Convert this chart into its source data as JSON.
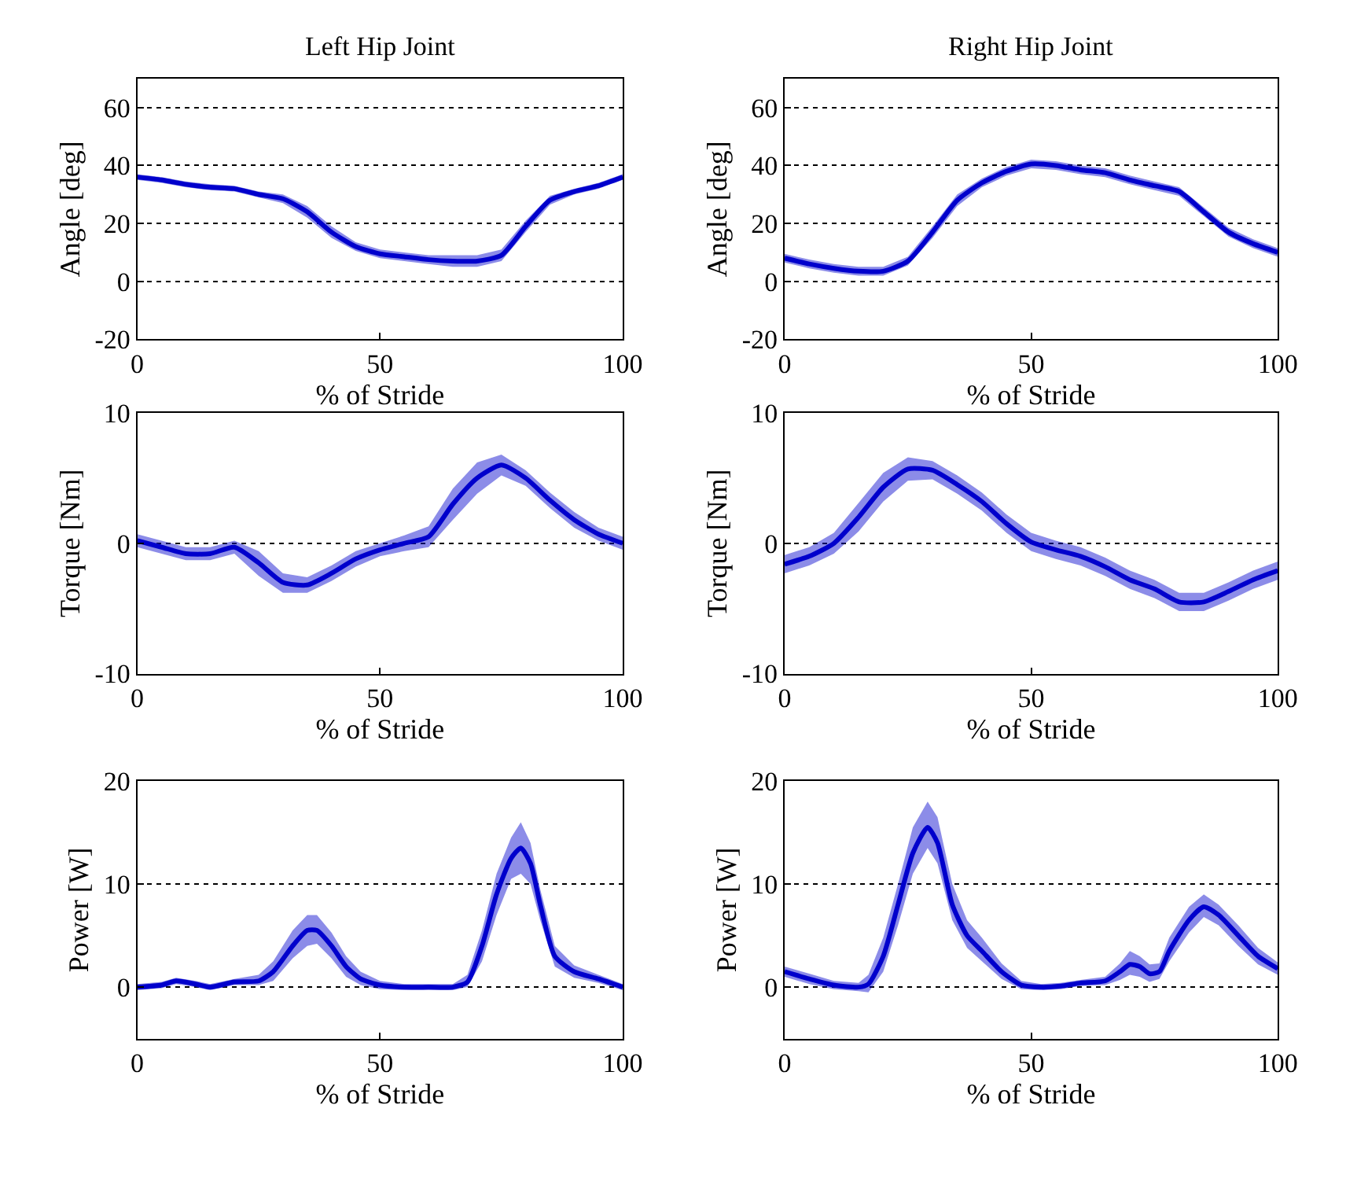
{
  "chart_data": [
    {
      "type": "line",
      "title": "Left Hip Joint",
      "xlabel": "% of Stride",
      "ylabel": "Angle [deg]",
      "xlim": [
        0,
        100
      ],
      "xticks": [
        0,
        50,
        100
      ],
      "ylim": [
        -20,
        70
      ],
      "yticks": [
        -20,
        0,
        20,
        40,
        60
      ],
      "grid": "y",
      "series": [
        {
          "color": "#0000cc",
          "x": [
            0,
            5,
            10,
            15,
            20,
            25,
            30,
            35,
            40,
            45,
            50,
            55,
            60,
            65,
            70,
            75,
            80,
            85,
            90,
            95,
            100
          ],
          "values": [
            36,
            35,
            33.5,
            32.5,
            32,
            30,
            28.5,
            24,
            17,
            12,
            9.5,
            8.5,
            7.5,
            7,
            7,
            9,
            19,
            28,
            31,
            33,
            36
          ],
          "lower": [
            35,
            34,
            32.5,
            31.5,
            31,
            29,
            27,
            22,
            15,
            10.5,
            8,
            7,
            6,
            5,
            5,
            7,
            17,
            26.5,
            30,
            32,
            35
          ],
          "upper": [
            37,
            36,
            34.5,
            33.5,
            33,
            31,
            30,
            26,
            19,
            13.5,
            11,
            10,
            9,
            9,
            9,
            11,
            21,
            29.5,
            32,
            34,
            37
          ]
        }
      ]
    },
    {
      "type": "line",
      "title": "Right Hip Joint",
      "xlabel": "% of Stride",
      "ylabel": "Angle [deg]",
      "xlim": [
        0,
        100
      ],
      "xticks": [
        0,
        50,
        100
      ],
      "ylim": [
        -20,
        70
      ],
      "yticks": [
        -20,
        0,
        20,
        40,
        60
      ],
      "grid": "y",
      "series": [
        {
          "color": "#0000cc",
          "x": [
            0,
            5,
            10,
            15,
            20,
            25,
            30,
            35,
            40,
            45,
            50,
            55,
            60,
            65,
            70,
            75,
            80,
            85,
            90,
            95,
            100
          ],
          "values": [
            8,
            6,
            4.5,
            3.5,
            3.5,
            7,
            17,
            28,
            34,
            38,
            40.5,
            40,
            38.5,
            37.5,
            35,
            33,
            31,
            24,
            17,
            13,
            10
          ],
          "lower": [
            6.5,
            4.5,
            3,
            2,
            2,
            5.5,
            15,
            26,
            32.5,
            36.5,
            39,
            38.5,
            37,
            36,
            33.5,
            31.5,
            29.5,
            22.5,
            15.5,
            11.5,
            8.5
          ],
          "upper": [
            9.5,
            7.5,
            6,
            5,
            5,
            8.5,
            19,
            30,
            35.5,
            39.5,
            42,
            41.5,
            40,
            39,
            36.5,
            34.5,
            32.5,
            25.5,
            18.5,
            14.5,
            11.5
          ]
        }
      ]
    },
    {
      "type": "line",
      "xlabel": "% of Stride",
      "ylabel": "Torque [Nm]",
      "xlim": [
        0,
        100
      ],
      "xticks": [
        0,
        50,
        100
      ],
      "ylim": [
        -10,
        10
      ],
      "yticks": [
        -10,
        0,
        10
      ],
      "grid": "y",
      "series": [
        {
          "color": "#0000cc",
          "x": [
            0,
            5,
            10,
            15,
            20,
            25,
            30,
            35,
            40,
            45,
            50,
            55,
            60,
            65,
            70,
            75,
            80,
            85,
            90,
            95,
            100
          ],
          "values": [
            0.2,
            -0.3,
            -0.8,
            -0.8,
            -0.3,
            -1.5,
            -3,
            -3.2,
            -2.3,
            -1.2,
            -0.5,
            0,
            0.5,
            3,
            5,
            6,
            5,
            3.3,
            1.8,
            0.7,
            0
          ],
          "lower": [
            -0.3,
            -0.8,
            -1.3,
            -1.3,
            -0.8,
            -2.5,
            -3.8,
            -3.8,
            -2.9,
            -1.8,
            -1,
            -0.6,
            -0.3,
            1.8,
            3.8,
            5.2,
            4.4,
            2.7,
            1.2,
            0.2,
            -0.5
          ],
          "upper": [
            0.7,
            0.2,
            -0.3,
            -0.3,
            0.2,
            -0.6,
            -2.3,
            -2.6,
            -1.7,
            -0.6,
            0,
            0.6,
            1.3,
            4.2,
            6.2,
            6.8,
            5.6,
            3.9,
            2.4,
            1.2,
            0.5
          ]
        }
      ]
    },
    {
      "type": "line",
      "xlabel": "% of Stride",
      "ylabel": "Torque [Nm]",
      "xlim": [
        0,
        100
      ],
      "xticks": [
        0,
        50,
        100
      ],
      "ylim": [
        -10,
        10
      ],
      "yticks": [
        -10,
        0,
        10
      ],
      "grid": "y",
      "series": [
        {
          "color": "#0000cc",
          "x": [
            0,
            5,
            10,
            15,
            20,
            25,
            30,
            35,
            40,
            45,
            50,
            55,
            60,
            65,
            70,
            75,
            80,
            85,
            90,
            95,
            100
          ],
          "values": [
            -1.6,
            -1,
            0,
            2,
            4.3,
            5.7,
            5.6,
            4.5,
            3.2,
            1.5,
            0.1,
            -0.5,
            -1,
            -1.8,
            -2.8,
            -3.5,
            -4.5,
            -4.5,
            -3.7,
            -2.8,
            -2.1
          ],
          "lower": [
            -2.3,
            -1.7,
            -0.8,
            0.9,
            3.2,
            4.8,
            4.9,
            3.8,
            2.5,
            0.8,
            -0.6,
            -1.2,
            -1.7,
            -2.5,
            -3.5,
            -4.2,
            -5.2,
            -5.2,
            -4.4,
            -3.5,
            -2.8
          ],
          "upper": [
            -0.9,
            -0.3,
            0.8,
            3.1,
            5.4,
            6.6,
            6.3,
            5.2,
            3.9,
            2.2,
            0.8,
            0.2,
            -0.3,
            -1.1,
            -2.1,
            -2.8,
            -3.8,
            -3.8,
            -3,
            -2.1,
            -1.4
          ]
        }
      ]
    },
    {
      "type": "line",
      "xlabel": "% of Stride",
      "ylabel": "Power [W]",
      "xlim": [
        0,
        100
      ],
      "xticks": [
        0,
        50,
        100
      ],
      "ylim": [
        -5,
        20
      ],
      "yticks": [
        0,
        10,
        20
      ],
      "grid": "y",
      "series": [
        {
          "color": "#0000cc",
          "x": [
            0,
            5,
            8,
            12,
            15,
            20,
            25,
            28,
            32,
            35,
            37,
            40,
            43,
            46,
            50,
            55,
            60,
            65,
            68,
            71,
            74,
            77,
            79,
            81,
            83,
            86,
            90,
            95,
            100
          ],
          "values": [
            0,
            0.2,
            0.6,
            0.3,
            0,
            0.5,
            0.6,
            1.5,
            4,
            5.5,
            5.5,
            4,
            2,
            0.8,
            0.2,
            0,
            0,
            0,
            0.5,
            4,
            9,
            12.5,
            13.5,
            12,
            8,
            3,
            1.5,
            0.8,
            0
          ],
          "lower": [
            -0.3,
            -0.1,
            0.3,
            0,
            -0.3,
            0.2,
            0.2,
            0.6,
            2.8,
            4,
            4.2,
            2.8,
            1,
            0.2,
            -0.2,
            -0.3,
            -0.3,
            -0.3,
            0,
            2.5,
            7,
            10.5,
            11,
            10,
            6.5,
            2,
            0.9,
            0.4,
            -0.3
          ],
          "upper": [
            0.3,
            0.5,
            0.9,
            0.6,
            0.3,
            0.8,
            1.2,
            2.5,
            5.5,
            7,
            7,
            5.3,
            3,
            1.5,
            0.6,
            0.3,
            0.3,
            0.3,
            1.2,
            5.5,
            11,
            14.5,
            16,
            14,
            9.5,
            4,
            2.1,
            1.2,
            0.3
          ]
        }
      ]
    },
    {
      "type": "line",
      "xlabel": "% of Stride",
      "ylabel": "Power [W]",
      "xlim": [
        0,
        100
      ],
      "xticks": [
        0,
        50,
        100
      ],
      "ylim": [
        -5,
        20
      ],
      "yticks": [
        0,
        10,
        20
      ],
      "grid": "y",
      "series": [
        {
          "color": "#0000cc",
          "x": [
            0,
            5,
            10,
            15,
            17,
            20,
            23,
            26,
            29,
            31,
            34,
            37,
            40,
            44,
            48,
            52,
            56,
            60,
            65,
            68,
            70,
            72,
            74,
            76,
            78,
            82,
            85,
            88,
            92,
            96,
            100
          ],
          "values": [
            1.5,
            0.8,
            0.2,
            0,
            0.3,
            3,
            8,
            13,
            15.5,
            14,
            8,
            5,
            3.5,
            1.5,
            0.2,
            0,
            0.1,
            0.4,
            0.6,
            1.5,
            2.2,
            2,
            1.3,
            1.5,
            3.5,
            6.5,
            7.8,
            7,
            5,
            3,
            1.8
          ],
          "lower": [
            1,
            0.3,
            -0.2,
            -0.4,
            -0.5,
            1.5,
            6,
            11,
            13.5,
            12,
            6.5,
            3.8,
            2.5,
            0.8,
            -0.2,
            -0.3,
            -0.2,
            0.1,
            0.2,
            0.7,
            1.2,
            1,
            0.5,
            0.8,
            2.5,
            5.3,
            6.8,
            6,
            4,
            2.2,
            1.2
          ],
          "upper": [
            2,
            1.3,
            0.6,
            0.4,
            1.2,
            4.8,
            10,
            15.5,
            18,
            16.5,
            10,
            6.5,
            4.8,
            2.3,
            0.6,
            0.3,
            0.4,
            0.7,
            1,
            2.3,
            3.5,
            3,
            2.2,
            2.3,
            4.8,
            7.8,
            9,
            8,
            6,
            3.8,
            2.4
          ]
        }
      ]
    }
  ]
}
